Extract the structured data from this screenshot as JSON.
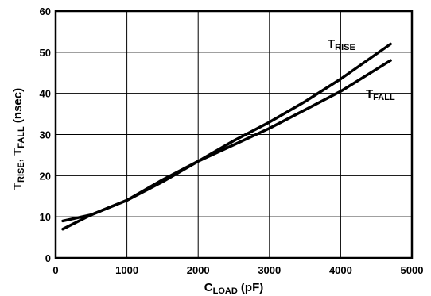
{
  "chart_data": {
    "type": "line",
    "xlabel_main": "C",
    "xlabel_sub": "LOAD",
    "xlabel_tail": " (pF)",
    "ylabel_parts": [
      {
        "text": "T",
        "sub": false
      },
      {
        "text": "RISE",
        "sub": true
      },
      {
        "text": ", T",
        "sub": false
      },
      {
        "text": "FALL",
        "sub": true
      },
      {
        "text": " (nsec)",
        "sub": false
      }
    ],
    "xlim": [
      0,
      5000
    ],
    "ylim": [
      0,
      60
    ],
    "xticks": [
      "0",
      "1000",
      "2000",
      "3000",
      "4000",
      "5000"
    ],
    "yticks": [
      "0",
      "10",
      "20",
      "30",
      "40",
      "50",
      "60"
    ],
    "grid": true,
    "series": [
      {
        "name_main": "T",
        "name_sub": "RISE",
        "x": [
          100,
          500,
          1000,
          1500,
          2000,
          2500,
          3000,
          3500,
          4000,
          4700
        ],
        "y": [
          7,
          10.5,
          14,
          18.5,
          23.5,
          28.5,
          33,
          38,
          43.5,
          52
        ]
      },
      {
        "name_main": "T",
        "name_sub": "FALL",
        "x": [
          100,
          500,
          1000,
          1500,
          2000,
          2500,
          3000,
          3500,
          4000,
          4700
        ],
        "y": [
          9,
          10.5,
          14,
          19,
          23.5,
          27.5,
          31.5,
          36,
          40.5,
          48
        ]
      }
    ]
  }
}
